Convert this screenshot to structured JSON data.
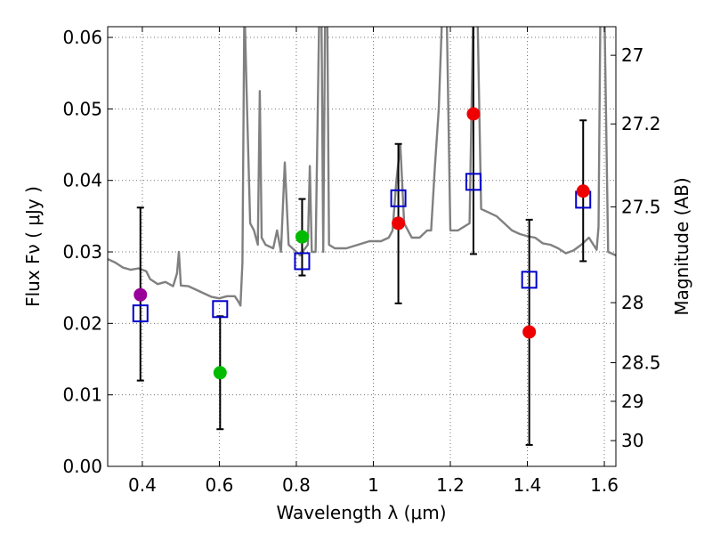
{
  "chart_data": {
    "type": "scatter",
    "title": "",
    "xlabel": "Wavelength  λ (μm)",
    "ylabel_left": "Flux  Fν  ( μJy )",
    "ylabel_right": "Magnitude (AB)",
    "xlim": [
      0.31,
      1.63
    ],
    "ylim": [
      0.0,
      0.0615
    ],
    "x_ticks": [
      0.4,
      0.6,
      0.8,
      1.0,
      1.2,
      1.4,
      1.6
    ],
    "x_tick_labels": [
      "0.4",
      "0.6",
      "0.8",
      "1",
      "1.2",
      "1.4",
      "1.6"
    ],
    "y_ticks": [
      0.0,
      0.01,
      0.02,
      0.03,
      0.04,
      0.05,
      0.06
    ],
    "y_tick_labels": [
      "0.00",
      "0.01",
      "0.02",
      "0.03",
      "0.04",
      "0.05",
      "0.06"
    ],
    "right_ticks": [
      {
        "label": "27",
        "flux": 0.0575
      },
      {
        "label": "27.2",
        "flux": 0.0479
      },
      {
        "label": "27.5",
        "flux": 0.0363
      },
      {
        "label": "28",
        "flux": 0.0229
      },
      {
        "label": "28.5",
        "flux": 0.0145
      },
      {
        "label": "29",
        "flux": 0.0091
      },
      {
        "label": "30",
        "flux": 0.0036
      }
    ],
    "grid": true,
    "colors": {
      "spectrum": "#808080",
      "model": "#0000cc",
      "errorbar": "#000000"
    },
    "observed": [
      {
        "x": 0.395,
        "y": 0.024,
        "yerr_lo": 0.012,
        "yerr_hi": 0.0362,
        "color": "#990099"
      },
      {
        "x": 0.602,
        "y": 0.0131,
        "yerr_lo": 0.0052,
        "yerr_hi": 0.021,
        "color": "#00bb00"
      },
      {
        "x": 0.815,
        "y": 0.0321,
        "yerr_lo": 0.0267,
        "yerr_hi": 0.0374,
        "color": "#00bb00"
      },
      {
        "x": 1.065,
        "y": 0.034,
        "yerr_lo": 0.0228,
        "yerr_hi": 0.0451,
        "color": "#ee0000"
      },
      {
        "x": 1.26,
        "y": 0.0493,
        "yerr_lo": 0.0297,
        "yerr_hi": 0.062,
        "color": "#ee0000"
      },
      {
        "x": 1.405,
        "y": 0.0188,
        "yerr_lo": 0.003,
        "yerr_hi": 0.0345,
        "color": "#ee0000"
      },
      {
        "x": 1.545,
        "y": 0.0385,
        "yerr_lo": 0.0287,
        "yerr_hi": 0.0484,
        "color": "#ee0000"
      }
    ],
    "model": [
      {
        "x": 0.395,
        "y": 0.0214
      },
      {
        "x": 0.602,
        "y": 0.022
      },
      {
        "x": 0.815,
        "y": 0.0287
      },
      {
        "x": 1.065,
        "y": 0.0375
      },
      {
        "x": 1.26,
        "y": 0.0398
      },
      {
        "x": 1.405,
        "y": 0.0261
      },
      {
        "x": 1.545,
        "y": 0.0373
      }
    ],
    "spectrum": [
      [
        0.31,
        0.029
      ],
      [
        0.33,
        0.0285
      ],
      [
        0.35,
        0.0278
      ],
      [
        0.37,
        0.0275
      ],
      [
        0.39,
        0.0277
      ],
      [
        0.41,
        0.0273
      ],
      [
        0.42,
        0.0262
      ],
      [
        0.44,
        0.0255
      ],
      [
        0.46,
        0.0258
      ],
      [
        0.48,
        0.0252
      ],
      [
        0.49,
        0.027
      ],
      [
        0.495,
        0.03
      ],
      [
        0.5,
        0.0253
      ],
      [
        0.52,
        0.0252
      ],
      [
        0.54,
        0.0247
      ],
      [
        0.56,
        0.0242
      ],
      [
        0.58,
        0.0237
      ],
      [
        0.6,
        0.0235
      ],
      [
        0.62,
        0.0238
      ],
      [
        0.64,
        0.0238
      ],
      [
        0.65,
        0.023
      ],
      [
        0.655,
        0.0225
      ],
      [
        0.66,
        0.0285
      ],
      [
        0.665,
        0.065
      ],
      [
        0.672,
        0.05
      ],
      [
        0.68,
        0.034
      ],
      [
        0.69,
        0.033
      ],
      [
        0.7,
        0.031
      ],
      [
        0.705,
        0.0525
      ],
      [
        0.71,
        0.032
      ],
      [
        0.72,
        0.031
      ],
      [
        0.74,
        0.0305
      ],
      [
        0.75,
        0.033
      ],
      [
        0.76,
        0.03
      ],
      [
        0.77,
        0.0425
      ],
      [
        0.78,
        0.031
      ],
      [
        0.79,
        0.0305
      ],
      [
        0.8,
        0.03
      ],
      [
        0.81,
        0.0295
      ],
      [
        0.82,
        0.0303
      ],
      [
        0.83,
        0.031
      ],
      [
        0.835,
        0.042
      ],
      [
        0.84,
        0.03
      ],
      [
        0.85,
        0.03
      ],
      [
        0.86,
        0.065
      ],
      [
        0.865,
        0.065
      ],
      [
        0.87,
        0.03
      ],
      [
        0.875,
        0.065
      ],
      [
        0.88,
        0.065
      ],
      [
        0.885,
        0.031
      ],
      [
        0.9,
        0.0305
      ],
      [
        0.93,
        0.0305
      ],
      [
        0.96,
        0.031
      ],
      [
        0.99,
        0.0315
      ],
      [
        1.0,
        0.0315
      ],
      [
        1.02,
        0.0315
      ],
      [
        1.04,
        0.032
      ],
      [
        1.05,
        0.033
      ],
      [
        1.06,
        0.04
      ],
      [
        1.07,
        0.045
      ],
      [
        1.08,
        0.034
      ],
      [
        1.1,
        0.032
      ],
      [
        1.12,
        0.032
      ],
      [
        1.14,
        0.033
      ],
      [
        1.15,
        0.033
      ],
      [
        1.16,
        0.042
      ],
      [
        1.17,
        0.05
      ],
      [
        1.18,
        0.065
      ],
      [
        1.19,
        0.065
      ],
      [
        1.2,
        0.033
      ],
      [
        1.22,
        0.033
      ],
      [
        1.25,
        0.034
      ],
      [
        1.26,
        0.065
      ],
      [
        1.27,
        0.065
      ],
      [
        1.28,
        0.036
      ],
      [
        1.3,
        0.0355
      ],
      [
        1.32,
        0.035
      ],
      [
        1.34,
        0.034
      ],
      [
        1.36,
        0.033
      ],
      [
        1.38,
        0.0325
      ],
      [
        1.4,
        0.0322
      ],
      [
        1.42,
        0.032
      ],
      [
        1.44,
        0.0312
      ],
      [
        1.46,
        0.031
      ],
      [
        1.48,
        0.0305
      ],
      [
        1.5,
        0.0298
      ],
      [
        1.52,
        0.0302
      ],
      [
        1.54,
        0.031
      ],
      [
        1.56,
        0.032
      ],
      [
        1.58,
        0.0303
      ],
      [
        1.585,
        0.0335
      ],
      [
        1.59,
        0.065
      ],
      [
        1.6,
        0.065
      ],
      [
        1.61,
        0.03
      ],
      [
        1.63,
        0.0295
      ]
    ]
  }
}
